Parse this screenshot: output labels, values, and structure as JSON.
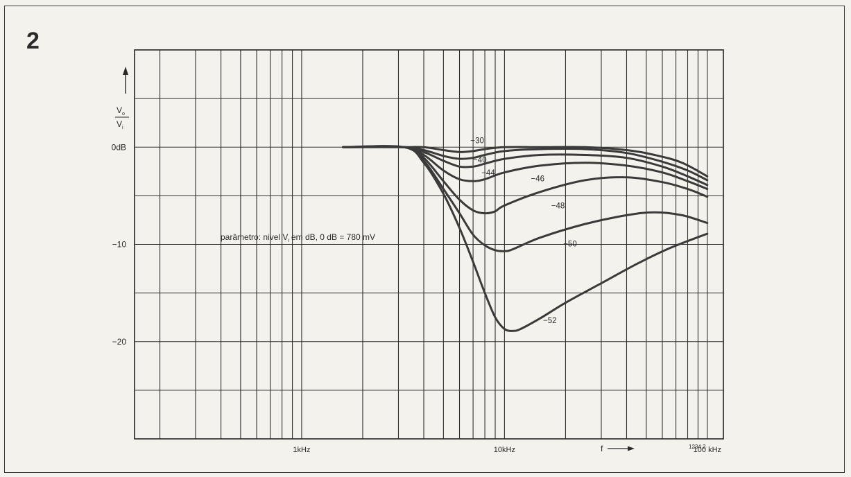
{
  "figure": {
    "number": "2"
  },
  "chart_data": {
    "type": "line",
    "title": "",
    "x_scale": "log",
    "xlim_hz": [
      150,
      120000
    ],
    "ylim_db": [
      -30,
      10
    ],
    "y_ticks": [
      {
        "value": 0,
        "label": "0dB"
      },
      {
        "value": -10,
        "label": "−10"
      },
      {
        "value": -20,
        "label": "−20"
      }
    ],
    "x_ticks": [
      {
        "value": 1000,
        "label": "1kHz"
      },
      {
        "value": 10000,
        "label": "10kHz"
      },
      {
        "value": 100000,
        "label": "100 kHz"
      }
    ],
    "y_axis_label": {
      "numerator": "V",
      "numerator_sub": "o",
      "denominator": "V",
      "denominator_sub": "i"
    },
    "x_axis_label": "f",
    "parameter_note": {
      "prefix": "parâmetro: nivel V",
      "sub": "i",
      "suffix": "em dB, 0 dB = 780 mV"
    },
    "figure_code": "1234 2",
    "grid": true,
    "series": [
      {
        "name": "−30",
        "points": [
          [
            1600,
            0
          ],
          [
            3200,
            0
          ],
          [
            4000,
            0
          ],
          [
            5000,
            -0.3
          ],
          [
            6000,
            -0.5
          ],
          [
            7000,
            -0.4
          ],
          [
            8000,
            -0.2
          ],
          [
            10000,
            0
          ],
          [
            15000,
            0
          ],
          [
            25000,
            0
          ],
          [
            40000,
            -0.3
          ],
          [
            55000,
            -0.8
          ],
          [
            75000,
            -1.6
          ],
          [
            100000,
            -3
          ]
        ]
      },
      {
        "name": "−40",
        "points": [
          [
            1600,
            0
          ],
          [
            3200,
            0
          ],
          [
            4000,
            -0.3
          ],
          [
            5000,
            -0.9
          ],
          [
            6000,
            -1.2
          ],
          [
            7000,
            -1.1
          ],
          [
            8000,
            -0.8
          ],
          [
            10000,
            -0.4
          ],
          [
            15000,
            -0.2
          ],
          [
            25000,
            -0.2
          ],
          [
            40000,
            -0.6
          ],
          [
            60000,
            -1.5
          ],
          [
            80000,
            -2.4
          ],
          [
            100000,
            -3.4
          ]
        ]
      },
      {
        "name": "−44",
        "points": [
          [
            1600,
            0
          ],
          [
            3200,
            0
          ],
          [
            4000,
            -0.5
          ],
          [
            5000,
            -1.4
          ],
          [
            6000,
            -2.0
          ],
          [
            7000,
            -2.0
          ],
          [
            8000,
            -1.7
          ],
          [
            10000,
            -1.2
          ],
          [
            15000,
            -0.8
          ],
          [
            25000,
            -0.8
          ],
          [
            40000,
            -1.1
          ],
          [
            60000,
            -2.0
          ],
          [
            80000,
            -3.0
          ],
          [
            100000,
            -3.9
          ]
        ]
      },
      {
        "name": "−46",
        "points": [
          [
            1600,
            0
          ],
          [
            3200,
            0
          ],
          [
            4000,
            -0.8
          ],
          [
            5000,
            -2.4
          ],
          [
            6000,
            -3.3
          ],
          [
            7000,
            -3.5
          ],
          [
            8000,
            -3.3
          ],
          [
            10000,
            -2.6
          ],
          [
            15000,
            -1.9
          ],
          [
            25000,
            -1.6
          ],
          [
            40000,
            -1.9
          ],
          [
            60000,
            -2.6
          ],
          [
            80000,
            -3.5
          ],
          [
            100000,
            -4.3
          ]
        ]
      },
      {
        "name": "−48",
        "points": [
          [
            1600,
            0
          ],
          [
            3200,
            0
          ],
          [
            4000,
            -1.1
          ],
          [
            5000,
            -3.5
          ],
          [
            6000,
            -5.4
          ],
          [
            7000,
            -6.5
          ],
          [
            8000,
            -6.8
          ],
          [
            9000,
            -6.6
          ],
          [
            10000,
            -6.0
          ],
          [
            15000,
            -4.6
          ],
          [
            25000,
            -3.4
          ],
          [
            40000,
            -3.1
          ],
          [
            60000,
            -3.6
          ],
          [
            80000,
            -4.3
          ],
          [
            100000,
            -5.1
          ]
        ]
      },
      {
        "name": "−50",
        "points": [
          [
            1600,
            0
          ],
          [
            3200,
            0
          ],
          [
            4000,
            -1.4
          ],
          [
            5000,
            -4.3
          ],
          [
            6000,
            -6.8
          ],
          [
            7000,
            -9.0
          ],
          [
            8000,
            -10.1
          ],
          [
            9000,
            -10.6
          ],
          [
            10000,
            -10.7
          ],
          [
            11000,
            -10.5
          ],
          [
            15000,
            -9.3
          ],
          [
            25000,
            -7.9
          ],
          [
            40000,
            -7.0
          ],
          [
            55000,
            -6.7
          ],
          [
            75000,
            -7.0
          ],
          [
            100000,
            -7.8
          ]
        ]
      },
      {
        "name": "−52",
        "points": [
          [
            1600,
            0
          ],
          [
            3200,
            0
          ],
          [
            4000,
            -1.6
          ],
          [
            5000,
            -4.8
          ],
          [
            6000,
            -8.3
          ],
          [
            7000,
            -11.8
          ],
          [
            8000,
            -15.0
          ],
          [
            9000,
            -17.5
          ],
          [
            10000,
            -18.7
          ],
          [
            11000,
            -18.9
          ],
          [
            12000,
            -18.7
          ],
          [
            15000,
            -17.6
          ],
          [
            20000,
            -16.0
          ],
          [
            30000,
            -14.0
          ],
          [
            45000,
            -12.0
          ],
          [
            65000,
            -10.4
          ],
          [
            100000,
            -8.9
          ]
        ]
      }
    ]
  }
}
